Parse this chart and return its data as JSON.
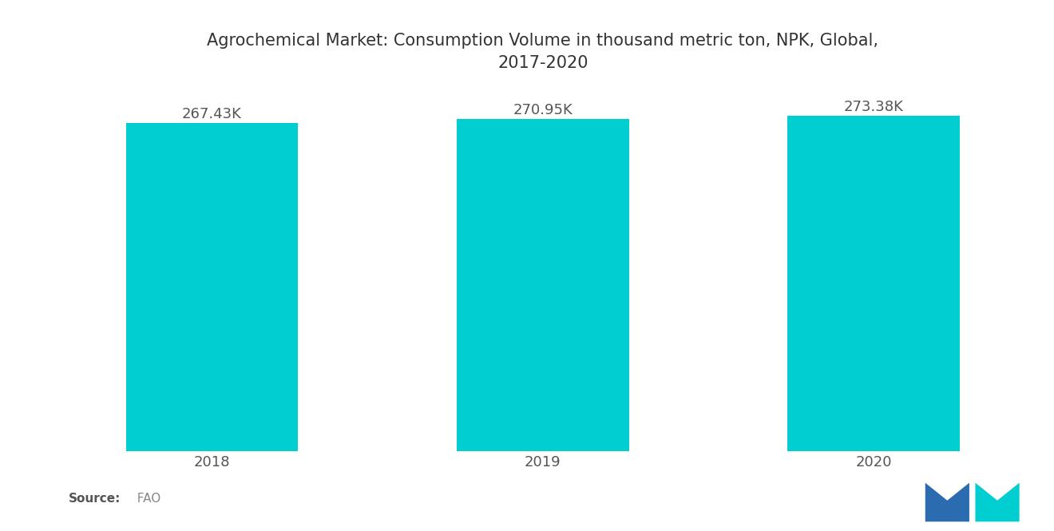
{
  "title": "Agrochemical Market: Consumption Volume in thousand metric ton, NPK, Global,\n2017-2020",
  "categories": [
    "2018",
    "2019",
    "2020"
  ],
  "values": [
    267.43,
    270.95,
    273.38
  ],
  "bar_labels": [
    "267.43K",
    "270.95K",
    "273.38K"
  ],
  "bar_color": "#00CED1",
  "background_color": "#ffffff",
  "title_fontsize": 15,
  "label_fontsize": 13,
  "tick_fontsize": 13,
  "source_bold": "Source:",
  "source_normal": "  FAO",
  "ylim": [
    0,
    290
  ],
  "bar_width": 0.52,
  "logo_left_color": "#2B6CB0",
  "logo_right_color": "#00CED1"
}
